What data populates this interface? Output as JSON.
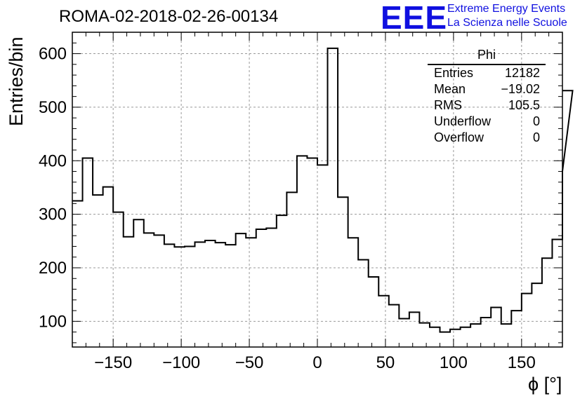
{
  "header": {
    "title": "ROMA-02-2018-02-26-00134",
    "logo_text": "EEE",
    "logo_line1": "Extreme Energy Events",
    "logo_line2": "La Scienza nelle Scuole"
  },
  "stats": {
    "name": "Phi",
    "rows": [
      {
        "label": "Entries",
        "value": "12182"
      },
      {
        "label": "Mean",
        "value": "−19.02"
      },
      {
        "label": "RMS",
        "value": "105.5"
      },
      {
        "label": "Underflow",
        "value": "0"
      },
      {
        "label": "Overflow",
        "value": "0"
      }
    ]
  },
  "chart_data": {
    "type": "bar",
    "style": "step-histogram",
    "xlabel": "ϕ [°]",
    "ylabel": "Entries/bin",
    "xlim": [
      -180,
      180
    ],
    "ylim": [
      52,
      640
    ],
    "grid": true,
    "x_ticks": [
      -150,
      -100,
      -50,
      0,
      50,
      100,
      150
    ],
    "y_ticks": [
      100,
      200,
      300,
      400,
      500,
      600
    ],
    "bin_width": 7.5,
    "bin_edges_start": -180,
    "values": [
      325,
      405,
      336,
      351,
      304,
      258,
      290,
      265,
      261,
      244,
      239,
      240,
      248,
      251,
      247,
      243,
      264,
      256,
      272,
      274,
      298,
      341,
      409,
      405,
      392,
      610,
      332,
      256,
      215,
      183,
      148,
      131,
      105,
      117,
      97,
      89,
      80,
      85,
      89,
      95,
      107,
      126,
      95,
      120,
      152,
      171,
      218,
      253,
      380
    ],
    "last_bin_value": 531,
    "line_color": "#000000",
    "grid_color": "#999999",
    "logo_color": "#1010e0"
  }
}
